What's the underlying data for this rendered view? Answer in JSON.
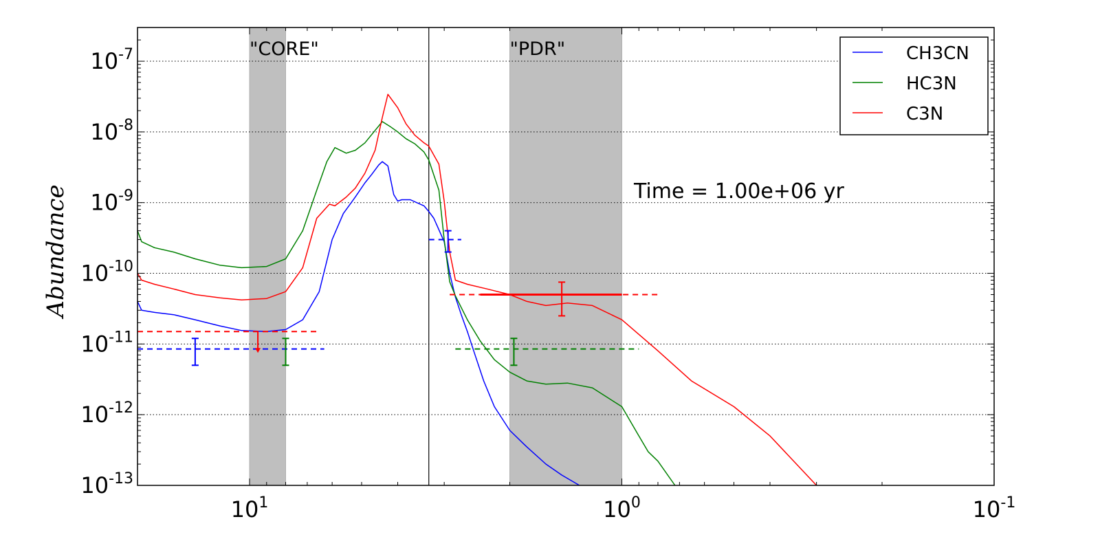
{
  "chart_data": {
    "type": "line",
    "ylabel": "Abundance",
    "xlabel": "",
    "xscale": "log-reversed",
    "yscale": "log",
    "xlim": [
      20,
      0.1
    ],
    "ylim": [
      1e-13,
      3e-07
    ],
    "grid": "horizontal dotted at y decades",
    "x_ticks": [
      {
        "value": 10,
        "base": "10",
        "exp": "1"
      },
      {
        "value": 1,
        "base": "10",
        "exp": "0"
      },
      {
        "value": 0.1,
        "base": "10",
        "exp": "-1"
      }
    ],
    "y_ticks": [
      {
        "value": 1e-07,
        "base": "10",
        "exp": "-7"
      },
      {
        "value": 1e-08,
        "base": "10",
        "exp": "-8"
      },
      {
        "value": 1e-09,
        "base": "10",
        "exp": "-9"
      },
      {
        "value": 1e-10,
        "base": "10",
        "exp": "-10"
      },
      {
        "value": 1e-11,
        "base": "10",
        "exp": "-11"
      },
      {
        "value": 1e-12,
        "base": "10",
        "exp": "-12"
      },
      {
        "value": 1e-13,
        "base": "10",
        "exp": "-13"
      }
    ],
    "bands": [
      {
        "label": "\"CORE\"",
        "x_range": [
          10,
          8.0
        ]
      },
      {
        "label": "\"PDR\"",
        "x_range": [
          2.0,
          1.0
        ]
      }
    ],
    "vline_x": 3.3,
    "annotation": "Time = 1.00e+06 yr",
    "legend": {
      "position": "top-right"
    },
    "series": [
      {
        "name": "CH3CN",
        "color": "#0000ff",
        "x": [
          20,
          19.5,
          18,
          16,
          14,
          12,
          10.5,
          9,
          8,
          7.2,
          6.5,
          6.0,
          5.6,
          5.2,
          4.9,
          4.7,
          4.5,
          4.4,
          4.25,
          4.1,
          4.0,
          3.9,
          3.7,
          3.4,
          3.3,
          3.2,
          3.0,
          2.9,
          2.8,
          2.7,
          2.6,
          2.5,
          2.35,
          2.2,
          2.0,
          1.8,
          1.6,
          1.45,
          1.3
        ],
        "y": [
          4e-11,
          3e-11,
          2.8e-11,
          2.6e-11,
          2.2e-11,
          1.8e-11,
          1.55e-11,
          1.5e-11,
          1.6e-11,
          2.2e-11,
          5.5e-11,
          3e-10,
          7e-10,
          1.2e-09,
          1.9e-09,
          2.5e-09,
          3.4e-09,
          3.8e-09,
          3.3e-09,
          1.3e-09,
          1.05e-09,
          1.1e-09,
          1.1e-09,
          9e-10,
          7.5e-10,
          6e-10,
          2.8e-10,
          1e-10,
          4.6e-11,
          2.6e-11,
          1.5e-11,
          8e-12,
          3e-12,
          1.3e-12,
          6e-13,
          3.5e-13,
          2e-13,
          1.4e-13,
          1e-13
        ]
      },
      {
        "name": "HC3N",
        "color": "#008000",
        "x": [
          20,
          19.5,
          18,
          16,
          14,
          12,
          10.5,
          9,
          8,
          7.2,
          6.6,
          6.2,
          5.9,
          5.5,
          5.2,
          4.9,
          4.6,
          4.4,
          4.2,
          4.0,
          3.8,
          3.6,
          3.4,
          3.3,
          3.1,
          3.0,
          2.9,
          2.8,
          2.6,
          2.4,
          2.2,
          2.0,
          1.8,
          1.6,
          1.4,
          1.2,
          1.0,
          0.9,
          0.85,
          0.8,
          0.72
        ],
        "y": [
          4e-10,
          2.8e-10,
          2.3e-10,
          2e-10,
          1.6e-10,
          1.3e-10,
          1.2e-10,
          1.25e-10,
          1.6e-10,
          4e-10,
          1.5e-09,
          3.8e-09,
          6e-09,
          5e-09,
          5.5e-09,
          7e-09,
          1.05e-08,
          1.4e-08,
          1.2e-08,
          1e-08,
          8e-09,
          6.8e-09,
          5.2e-09,
          4e-09,
          1.5e-09,
          3e-10,
          7.6e-11,
          4.8e-11,
          2.2e-11,
          1.1e-11,
          6e-12,
          4e-12,
          3e-12,
          2.7e-12,
          2.8e-12,
          2.4e-12,
          1.3e-12,
          5e-13,
          3e-13,
          2.2e-13,
          1e-13
        ]
      },
      {
        "name": "C3N",
        "color": "#ff0000",
        "x": [
          20,
          19.5,
          18,
          16,
          14,
          12,
          10.5,
          9,
          8,
          7.2,
          6.6,
          6.1,
          5.9,
          5.5,
          5.2,
          4.9,
          4.6,
          4.4,
          4.25,
          4.0,
          3.8,
          3.6,
          3.4,
          3.3,
          3.1,
          3.0,
          2.9,
          2.8,
          2.6,
          2.3,
          2.0,
          1.8,
          1.6,
          1.4,
          1.2,
          1.0,
          0.8,
          0.65,
          0.5,
          0.4,
          0.3
        ],
        "y": [
          1e-10,
          8e-11,
          7e-11,
          6e-11,
          5e-11,
          4.5e-11,
          4.2e-11,
          4.4e-11,
          5.5e-11,
          1.2e-10,
          6e-10,
          9.5e-10,
          9e-10,
          1.2e-09,
          1.6e-09,
          2.6e-09,
          5.5e-09,
          1.6e-08,
          3.4e-08,
          2.2e-08,
          1.3e-08,
          9e-09,
          7e-09,
          6.3e-09,
          3.5e-09,
          1.05e-09,
          2e-10,
          8e-11,
          7e-11,
          6e-11,
          5e-11,
          4e-11,
          3.5e-11,
          3.8e-11,
          3.5e-11,
          2.2e-11,
          8e-12,
          3e-12,
          1.3e-12,
          5e-13,
          1e-13
        ]
      }
    ],
    "observations": [
      {
        "series": "CH3CN",
        "y": 8.5e-12,
        "x_range": [
          20,
          6.3
        ],
        "x": 14,
        "y_err": [
          5e-12,
          1.2e-11
        ]
      },
      {
        "series": "HC3N",
        "y": 8.5e-12,
        "x": 8.0,
        "y_err": [
          5e-12,
          1.2e-11
        ]
      },
      {
        "series": "C3N",
        "y": 1.5e-11,
        "x_range": [
          20,
          6.6
        ],
        "x": 9.5,
        "upper_limit": true
      },
      {
        "series": "CH3CN",
        "y": 3e-10,
        "x_range": [
          3.3,
          2.7
        ],
        "x": 2.93,
        "y_err": [
          2e-10,
          4e-10
        ]
      },
      {
        "series": "HC3N",
        "y": 8.5e-12,
        "x_range": [
          2.8,
          0.9
        ],
        "x": 1.95,
        "y_err": [
          5e-12,
          1.2e-11
        ]
      },
      {
        "series": "C3N",
        "y": 5e-11,
        "x_range": [
          2.9,
          0.8
        ],
        "x": 1.45,
        "x_thick": [
          2.4,
          1.0
        ],
        "y_err": [
          2.5e-11,
          7.5e-11
        ]
      }
    ]
  }
}
